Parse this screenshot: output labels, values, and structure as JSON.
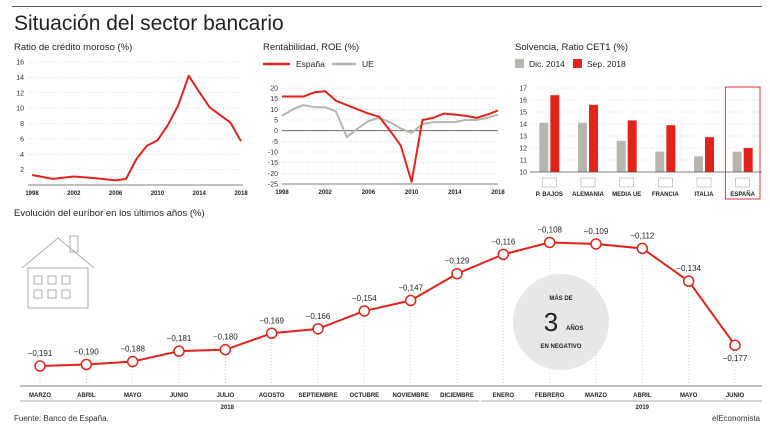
{
  "title": "Situación del sector bancario",
  "source": "Fuente: Banco de España.",
  "brand": "elEconomista",
  "colors": {
    "red": "#e2231a",
    "gray": "#b8b5ae",
    "grid": "#bbbbbb"
  },
  "chart_data": [
    {
      "type": "line",
      "subtitle": "Ratio de crédito moroso (%)",
      "xticks": [
        "1998",
        "2002",
        "2006",
        "2010",
        "2014",
        "2018"
      ],
      "ylim": [
        0,
        16
      ],
      "yticks": [
        2,
        4,
        6,
        8,
        10,
        12,
        14,
        16
      ],
      "x": [
        1998,
        2000,
        2002,
        2004,
        2006,
        2007,
        2008,
        2009,
        2010,
        2011,
        2012,
        2013,
        2014,
        2015,
        2017,
        2018
      ],
      "series": [
        {
          "values": [
            1.3,
            0.8,
            1.1,
            0.9,
            0.6,
            0.8,
            3.4,
            5.1,
            5.8,
            7.8,
            10.4,
            14.2,
            12.1,
            10.1,
            8.1,
            5.7
          ]
        }
      ]
    },
    {
      "type": "line",
      "subtitle": "Rentabilidad, ROE (%)",
      "legend": [
        "España",
        "UE"
      ],
      "xticks": [
        "1998",
        "2002",
        "2006",
        "2010",
        "2014",
        "2018"
      ],
      "ylim": [
        -25,
        20
      ],
      "yticks": [
        20,
        15,
        10,
        5,
        0,
        -5,
        -10,
        -15,
        -20,
        -25
      ],
      "x": [
        1998,
        1999,
        2000,
        2001,
        2002,
        2003,
        2004,
        2005,
        2006,
        2007,
        2008,
        2009,
        2010,
        2011,
        2012,
        2013,
        2014,
        2015,
        2016,
        2017,
        2018
      ],
      "series": [
        {
          "name": "España",
          "values": [
            16,
            16,
            16,
            18,
            18.5,
            14,
            12,
            10,
            8,
            6.5,
            0,
            -7,
            -24,
            5,
            6,
            8,
            7.5,
            7,
            6,
            7.5,
            9.5
          ]
        },
        {
          "name": "UE",
          "values": [
            7,
            10,
            12,
            11,
            11,
            9,
            -3,
            1,
            4.5,
            6,
            4,
            1,
            -1,
            3,
            4,
            4,
            4,
            5,
            5,
            6,
            7.5
          ]
        }
      ]
    },
    {
      "type": "bar",
      "subtitle": "Solvencia, Ratio CET1 (%)",
      "legend": [
        "Dic. 2014",
        "Sep. 2018"
      ],
      "categories": [
        "P. BAJOS",
        "ALEMANIA",
        "MEDIA UE",
        "FRANCIA",
        "ITALIA",
        "ESPAÑA"
      ],
      "ylim": [
        10,
        17
      ],
      "yticks": [
        10,
        11,
        12,
        13,
        14,
        15,
        16,
        17
      ],
      "series": [
        {
          "name": "Dic. 2014",
          "values": [
            14.1,
            14.1,
            12.6,
            11.7,
            11.3,
            11.7
          ]
        },
        {
          "name": "Sep. 2018",
          "values": [
            16.4,
            15.6,
            14.3,
            13.9,
            12.9,
            12.0
          ]
        }
      ]
    },
    {
      "type": "line",
      "subtitle": "Evolución del euríbor en los últimos años (%)",
      "categories": [
        "MARZO",
        "ABRIL",
        "MAYO",
        "JUNIO",
        "JULIO",
        "AGOSTO",
        "SEPTIEMBRE",
        "OCTUBRE",
        "NOVIEMBRE",
        "DICIEMBRE",
        "ENERO",
        "FEBRERO",
        "MARZO",
        "ABRIL",
        "MAYO",
        "JUNIO"
      ],
      "year_labels": [
        "2018",
        "2019"
      ],
      "series": [
        {
          "values": [
            -0.191,
            -0.19,
            -0.188,
            -0.181,
            -0.18,
            -0.169,
            -0.166,
            -0.154,
            -0.147,
            -0.129,
            -0.116,
            -0.108,
            -0.109,
            -0.112,
            -0.134,
            -0.177
          ]
        }
      ],
      "data_labels": [
        "−0,191",
        "−0,190",
        "−0,188",
        "−0,181",
        "−0,180",
        "−0,169",
        "−0,166",
        "−0,154",
        "−0,147",
        "−0,129",
        "−0,116",
        "−0,108",
        "−0,109",
        "−0,112",
        "−0,134",
        "−0,177"
      ],
      "annotation": {
        "top": "MÁS DE",
        "number": "3",
        "unit": "AÑOS",
        "bottom": "EN NEGATIVO"
      }
    }
  ]
}
